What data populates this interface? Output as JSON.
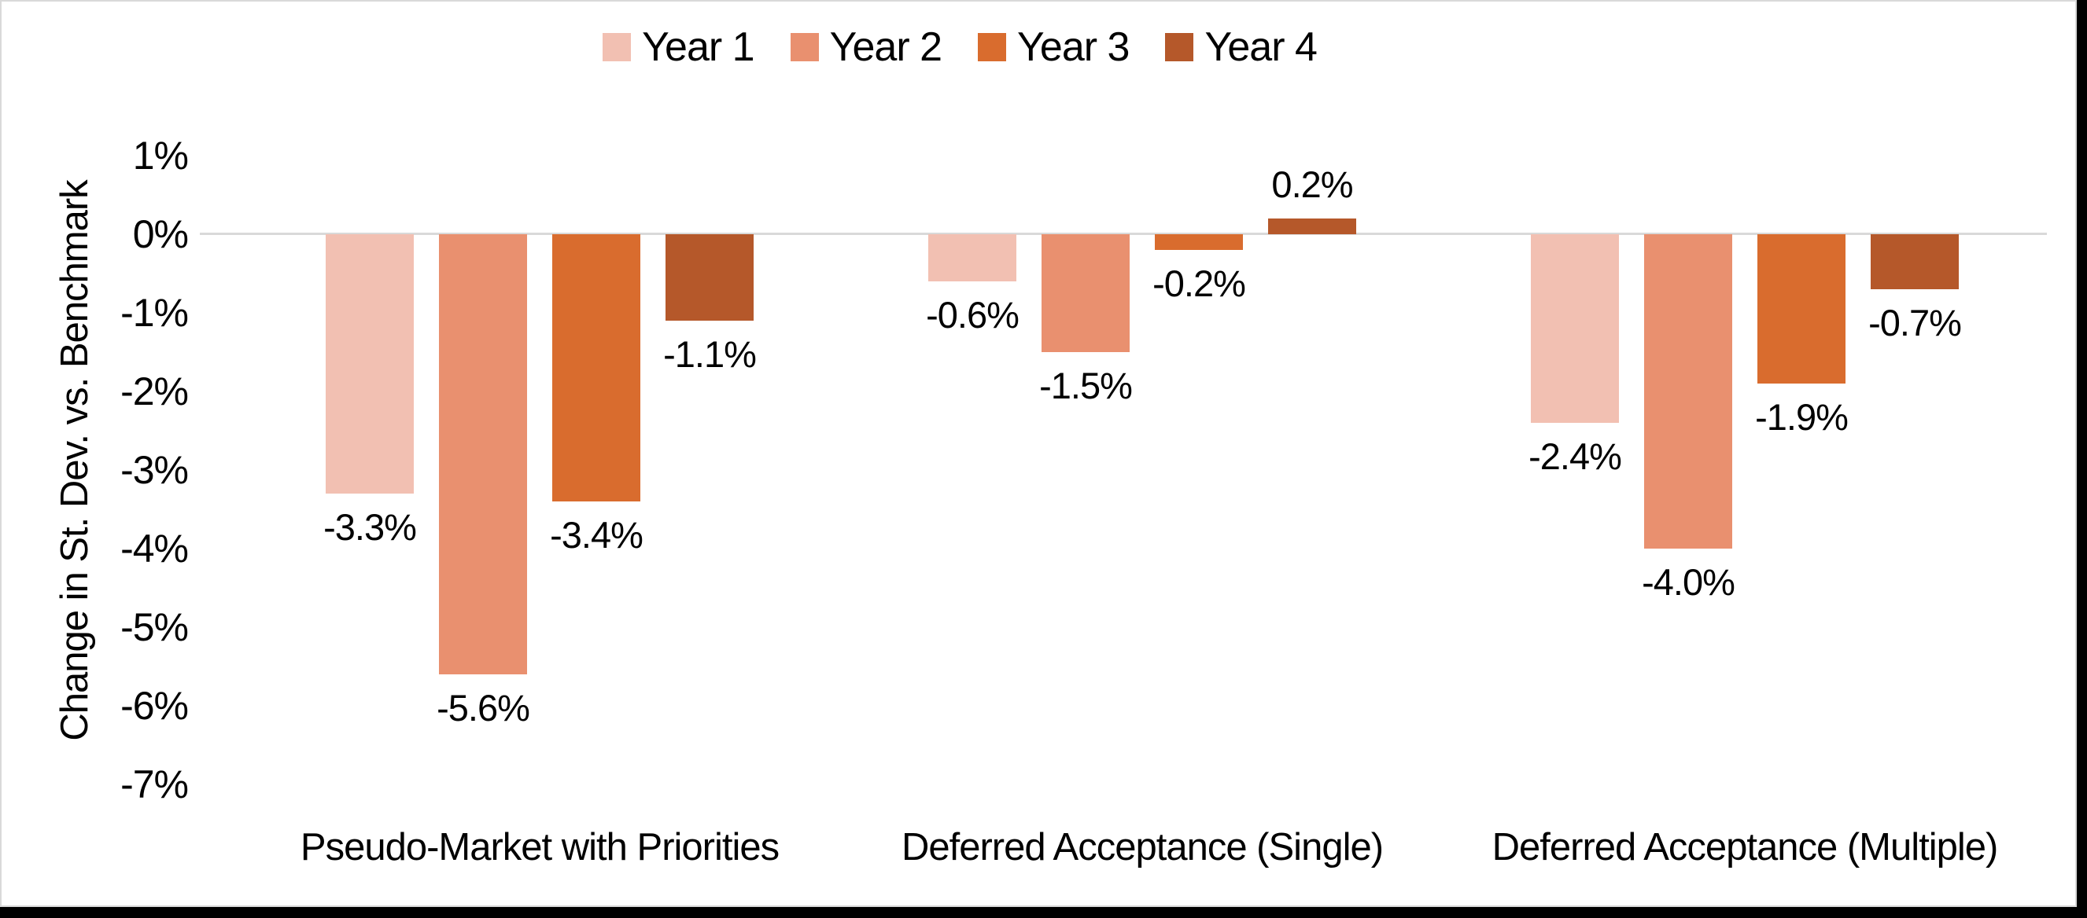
{
  "frame": {
    "outer_background": "#000000",
    "chart_background": "#ffffff",
    "chart_border_color": "#d9d9d9"
  },
  "chart_data": {
    "type": "bar",
    "title": "",
    "xlabel": "",
    "ylabel": "Change in St. Dev. vs. Benchmark",
    "ylim": [
      -7,
      1
    ],
    "grid": "zero-line-only",
    "zero_line_color": "#d9d9d9",
    "legend_position": "top-center",
    "y_ticks": [
      {
        "value": 1,
        "label": "1%"
      },
      {
        "value": 0,
        "label": "0%"
      },
      {
        "value": -1,
        "label": "-1%"
      },
      {
        "value": -2,
        "label": "-2%"
      },
      {
        "value": -3,
        "label": "-3%"
      },
      {
        "value": -4,
        "label": "-4%"
      },
      {
        "value": -5,
        "label": "-5%"
      },
      {
        "value": -6,
        "label": "-6%"
      },
      {
        "value": -7,
        "label": "-7%"
      }
    ],
    "categories": [
      "Pseudo-Market with Priorities",
      "Deferred Acceptance (Single)",
      "Deferred Acceptance (Multiple)"
    ],
    "series": [
      {
        "name": "Year 1",
        "color": "#f2c0b2",
        "values": [
          -3.3,
          -0.6,
          -2.4
        ],
        "labels": [
          "-3.3%",
          "-0.6%",
          "-2.4%"
        ]
      },
      {
        "name": "Year 2",
        "color": "#e9906f",
        "values": [
          -5.6,
          -1.5,
          -4.0
        ],
        "labels": [
          "-5.6%",
          "-1.5%",
          "-4.0%"
        ]
      },
      {
        "name": "Year 3",
        "color": "#d96c2e",
        "values": [
          -3.4,
          -0.2,
          -1.9
        ],
        "labels": [
          "-3.4%",
          "-0.2%",
          "-1.9%"
        ]
      },
      {
        "name": "Year 4",
        "color": "#b5582a",
        "values": [
          -1.1,
          0.2,
          -0.7
        ],
        "labels": [
          "-1.1%",
          "0.2%",
          "-0.7%"
        ]
      }
    ]
  }
}
